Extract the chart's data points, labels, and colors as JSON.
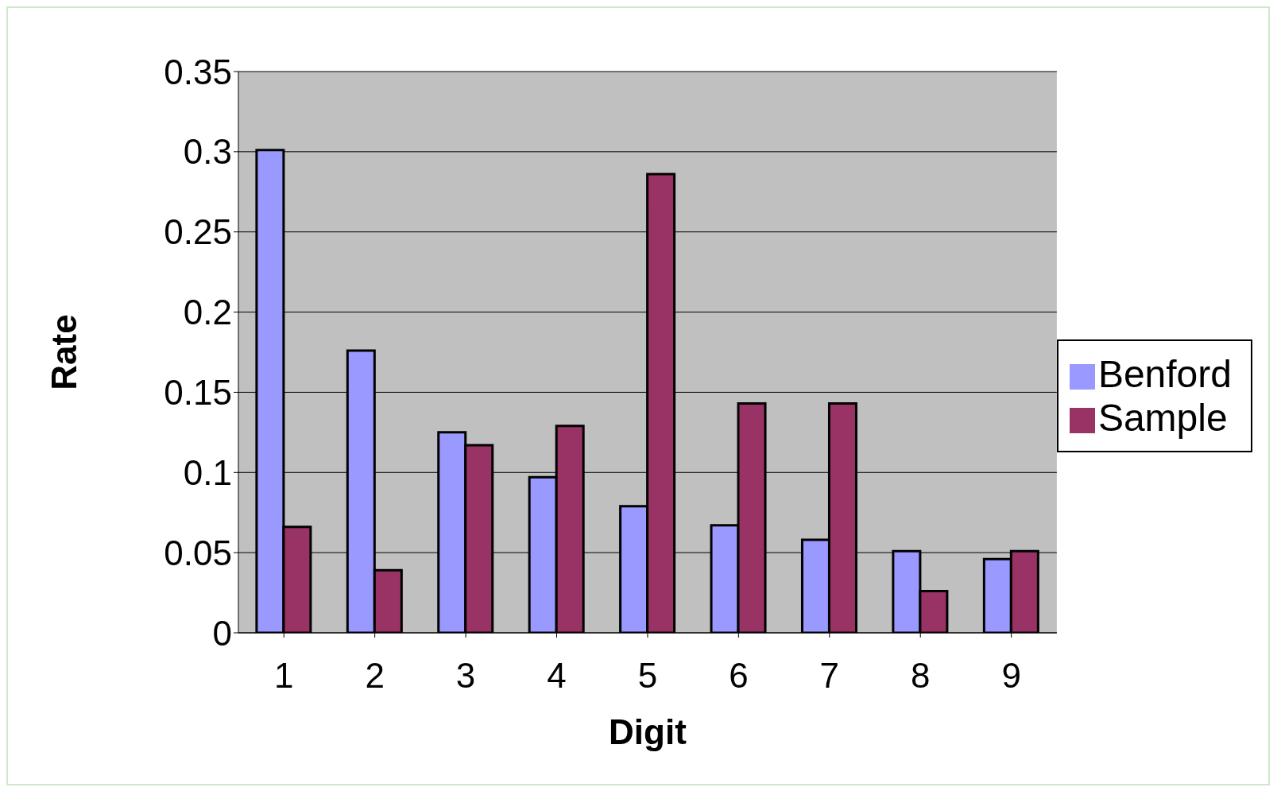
{
  "chart_data": {
    "type": "bar",
    "xlabel": "Digit",
    "ylabel": "Rate",
    "categories": [
      "1",
      "2",
      "3",
      "4",
      "5",
      "6",
      "7",
      "8",
      "9"
    ],
    "series": [
      {
        "name": "Benford",
        "color": "#9999ff",
        "values": [
          0.301,
          0.176,
          0.125,
          0.097,
          0.079,
          0.067,
          0.058,
          0.051,
          0.046
        ]
      },
      {
        "name": "Sample",
        "color": "#993366",
        "values": [
          0.066,
          0.039,
          0.117,
          0.129,
          0.286,
          0.143,
          0.143,
          0.026,
          0.051
        ]
      }
    ],
    "ylim": [
      0,
      0.35
    ],
    "yticks": [
      0,
      0.05,
      0.1,
      0.15,
      0.2,
      0.25,
      0.3,
      0.35
    ],
    "grid": "y",
    "legend": "right"
  }
}
